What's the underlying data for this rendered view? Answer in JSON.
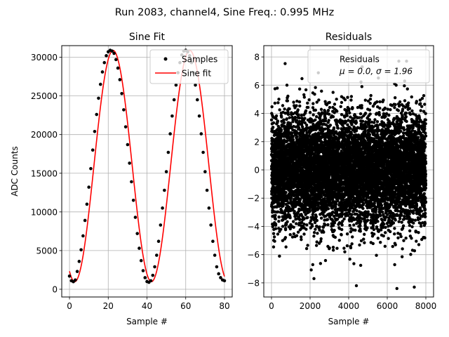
{
  "figure_title": "Run 2083, channel4, Sine Freq.: 0.995 MHz",
  "colors": {
    "samples": "#000000",
    "fit": "#ff0000",
    "grid": "#b0b0b0",
    "frame": "#000000"
  },
  "chart_data": [
    {
      "id": "sine-fit",
      "type": "line",
      "title": "Sine Fit",
      "xlabel": "Sample #",
      "ylabel": "ADC Counts",
      "xlim": [
        -4,
        84
      ],
      "ylim": [
        -1000,
        31500
      ],
      "xticks": [
        0,
        20,
        40,
        60,
        80
      ],
      "yticks": [
        0,
        5000,
        10000,
        15000,
        20000,
        25000,
        30000
      ],
      "grid": true,
      "legend": {
        "location": "top-right",
        "entries": [
          "Samples",
          "Sine fit"
        ]
      },
      "fit": {
        "amplitude": 14950,
        "offset": 15930,
        "period": 39.6,
        "phase_peak_x": 22.5
      },
      "series": [
        {
          "name": "Samples",
          "style": "markers",
          "x": [
            0,
            1,
            2,
            3,
            4,
            5,
            6,
            7,
            8,
            9,
            10,
            11,
            12,
            13,
            14,
            15,
            16,
            17,
            18,
            19,
            20,
            21,
            22,
            23,
            24,
            25,
            26,
            27,
            28,
            29,
            30,
            31,
            32,
            33,
            34,
            35,
            36,
            37,
            38,
            39,
            40,
            41,
            42,
            43,
            44,
            45,
            46,
            47,
            48,
            49,
            50,
            51,
            52,
            53,
            54,
            55,
            56,
            57,
            58,
            59,
            60,
            61,
            62,
            63,
            64,
            65,
            66,
            67,
            68,
            69,
            70,
            71,
            72,
            73,
            74,
            75,
            76,
            77,
            78,
            79,
            80
          ],
          "values": [
            1700,
            1100,
            980,
            1200,
            2300,
            3600,
            5100,
            6900,
            8900,
            11000,
            13200,
            15600,
            18000,
            20400,
            22600,
            24700,
            26500,
            28100,
            29300,
            30200,
            30700,
            30900,
            30800,
            30500,
            29700,
            28600,
            27100,
            25300,
            23200,
            21000,
            18700,
            16300,
            13900,
            11500,
            9300,
            7200,
            5300,
            3700,
            2400,
            1500,
            1000,
            900,
            1100,
            1800,
            2900,
            4400,
            6200,
            8300,
            10500,
            12800,
            15200,
            17700,
            20100,
            22400,
            24500,
            26400,
            28000,
            29300,
            30300,
            30800,
            30900,
            30700,
            30200,
            29300,
            28000,
            26400,
            24500,
            22400,
            20100,
            17700,
            15200,
            12800,
            10500,
            8300,
            6200,
            4400,
            2900,
            2000,
            1500,
            1200,
            1100
          ]
        },
        {
          "name": "Sine fit",
          "style": "line",
          "x_range": [
            0,
            80
          ]
        }
      ]
    },
    {
      "id": "residuals",
      "type": "scatter",
      "title": "Residuals",
      "xlabel": "Sample #",
      "ylabel": "",
      "xlim": [
        -400,
        8400
      ],
      "ylim": [
        -9,
        8.8
      ],
      "xticks": [
        0,
        2000,
        4000,
        6000,
        8000
      ],
      "yticks": [
        -8,
        -6,
        -4,
        -2,
        0,
        2,
        4,
        6,
        8
      ],
      "grid": true,
      "legend": {
        "location": "top-right",
        "entries": [
          "Residuals",
          "$\\mu$ = 0.0, $\\sigma$ = 1.96"
        ]
      },
      "legend_text": {
        "line1": "Residuals",
        "line2_mu": "μ = 0.0, ",
        "line2_sigma": "σ = 1.96"
      },
      "stats": {
        "mu": 0.0,
        "sigma": 1.96,
        "n_points": 8000
      },
      "series": [
        {
          "name": "Residuals",
          "representative_outliers": [
            {
              "x": 4700,
              "y": 7.3
            },
            {
              "x": 6600,
              "y": 7.7
            },
            {
              "x": 7000,
              "y": 7.7
            },
            {
              "x": 800,
              "y": 6.0
            },
            {
              "x": 6500,
              "y": -8.4
            },
            {
              "x": 4400,
              "y": -8.2
            },
            {
              "x": 7400,
              "y": -8.3
            },
            {
              "x": 2200,
              "y": -7.7
            }
          ]
        }
      ]
    }
  ]
}
